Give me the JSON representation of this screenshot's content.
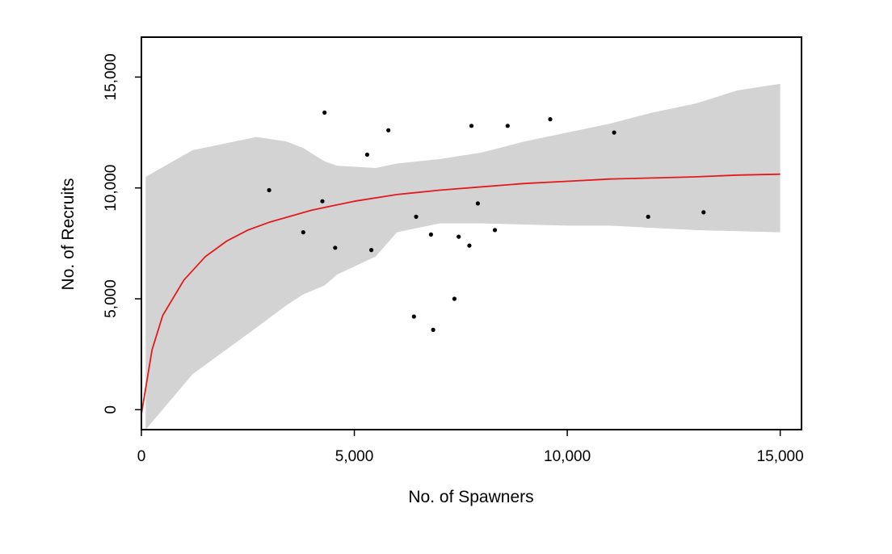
{
  "chart_data": {
    "type": "scatter",
    "title": "",
    "xlabel": "No. of Spawners",
    "ylabel": "No. of Recruits",
    "xlim": [
      0,
      15500
    ],
    "ylim": [
      -900,
      16800
    ],
    "x_ticks": [
      0,
      5000,
      10000,
      15000
    ],
    "x_tick_labels": [
      "0",
      "5,000",
      "10,000",
      "15,000"
    ],
    "y_ticks": [
      0,
      5000,
      10000,
      15000
    ],
    "y_tick_labels": [
      "0",
      "5,000",
      "10,000",
      "15,000"
    ],
    "grid": false,
    "legend": "none",
    "colors": {
      "points": "#000000",
      "fit_line": "#e31a1c",
      "confidence_band": "#d3d3d3",
      "frame": "#000000"
    },
    "series": [
      {
        "type": "scatter",
        "points": [
          [
            3000,
            9900
          ],
          [
            3800,
            8000
          ],
          [
            4250,
            9400
          ],
          [
            4300,
            13400
          ],
          [
            4550,
            7300
          ],
          [
            5300,
            11500
          ],
          [
            5400,
            7200
          ],
          [
            5800,
            12600
          ],
          [
            6400,
            4200
          ],
          [
            6450,
            8700
          ],
          [
            6800,
            7900
          ],
          [
            6850,
            3600
          ],
          [
            7350,
            5000
          ],
          [
            7450,
            7800
          ],
          [
            7700,
            7400
          ],
          [
            7750,
            12800
          ],
          [
            7900,
            9300
          ],
          [
            8300,
            8100
          ],
          [
            8600,
            12800
          ],
          [
            9600,
            13100
          ],
          [
            11100,
            12500
          ],
          [
            11900,
            8700
          ],
          [
            13200,
            8900
          ]
        ]
      },
      {
        "type": "line",
        "x": [
          0,
          250,
          500,
          1000,
          1500,
          2000,
          2500,
          3000,
          4000,
          5000,
          6000,
          7000,
          8000,
          9000,
          10000,
          11000,
          12000,
          13000,
          14000,
          15000
        ],
        "y": [
          -200,
          2700,
          4250,
          5850,
          6900,
          7600,
          8100,
          8450,
          9000,
          9400,
          9700,
          9900,
          10050,
          10200,
          10300,
          10400,
          10450,
          10500,
          10580,
          10620
        ]
      },
      {
        "type": "band",
        "x": [
          100,
          1200,
          2700,
          3400,
          3800,
          4300,
          4600,
          5500,
          6000,
          7000,
          8000,
          9000,
          10000,
          11000,
          12000,
          13000,
          14000,
          15000
        ],
        "upper": [
          10500,
          11700,
          12300,
          12100,
          11800,
          11200,
          11000,
          10900,
          11100,
          11300,
          11600,
          12100,
          12500,
          12900,
          13400,
          13800,
          14400,
          14700
        ],
        "lower": [
          -900,
          1600,
          3700,
          4700,
          5200,
          5600,
          6100,
          6900,
          8000,
          8400,
          8400,
          8350,
          8300,
          8300,
          8200,
          8100,
          8050,
          8000
        ]
      }
    ]
  }
}
